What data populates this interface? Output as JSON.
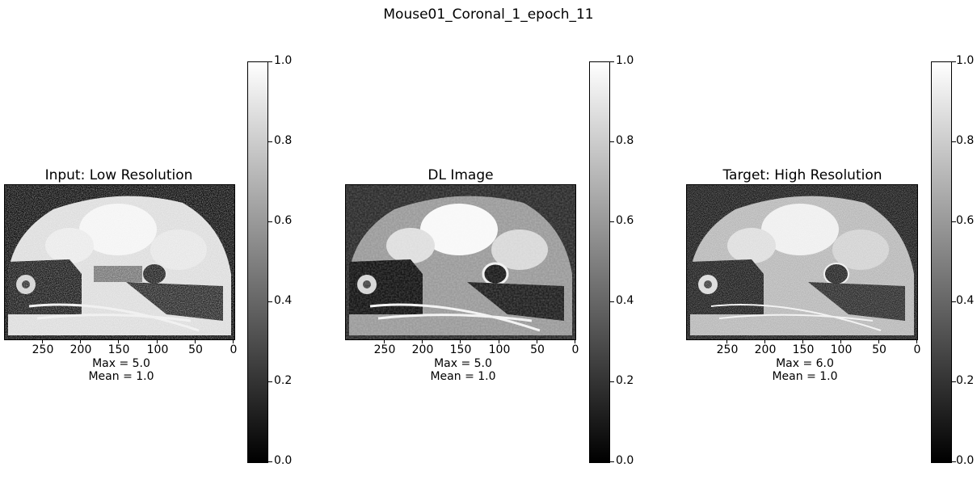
{
  "figure": {
    "title": "Mouse01_Coronal_1_epoch_11"
  },
  "panels": [
    {
      "id": "input",
      "title": "Input: Low Resolution",
      "stats": {
        "max": "Max = 5.0",
        "mean": "Mean = 1.0"
      },
      "colorbar": {
        "ticks": [
          "0.0",
          "0.2",
          "0.4",
          "0.6",
          "0.8",
          "1.0"
        ]
      }
    },
    {
      "id": "dl",
      "title": "DL Image",
      "stats": {
        "max": "Max = 5.0",
        "mean": "Mean = 1.0"
      },
      "colorbar": {
        "ticks": [
          "0.0",
          "0.2",
          "0.4",
          "0.6",
          "0.8",
          "1.0"
        ]
      }
    },
    {
      "id": "target",
      "title": "Target: High Resolution",
      "stats": {
        "max": "Max = 6.0",
        "mean": "Mean = 1.0"
      },
      "colorbar": {
        "ticks": [
          "0.0",
          "0.2",
          "0.4",
          "0.6",
          "0.8",
          "1.0"
        ]
      }
    }
  ],
  "x_ticks": [
    "250",
    "200",
    "150",
    "100",
    "50",
    "0"
  ],
  "colormap": "gray"
}
